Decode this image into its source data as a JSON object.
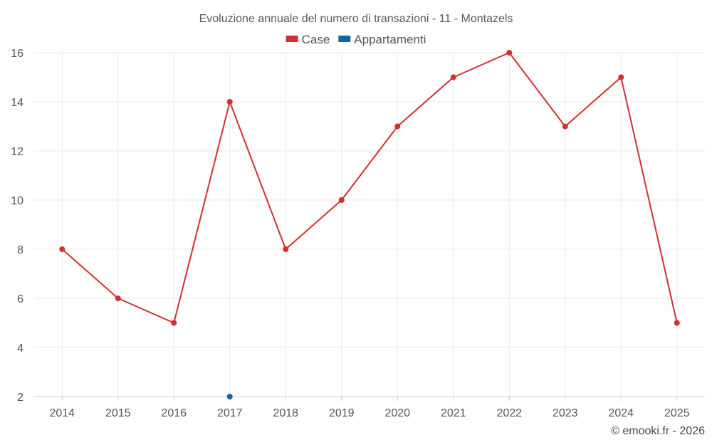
{
  "chart_data": {
    "type": "line",
    "title": "Evoluzione annuale del numero di transazioni - 11 - Montazels",
    "categories": [
      "2014",
      "2015",
      "2016",
      "2017",
      "2018",
      "2019",
      "2020",
      "2021",
      "2022",
      "2023",
      "2024",
      "2025"
    ],
    "series": [
      {
        "name": "Case",
        "color": "#d32f2f",
        "values": [
          8,
          6,
          5,
          14,
          8,
          10,
          13,
          15,
          16,
          13,
          15,
          5
        ]
      },
      {
        "name": "Appartamenti",
        "color": "#1565a0",
        "values": [
          null,
          null,
          null,
          2,
          null,
          null,
          null,
          null,
          null,
          null,
          null,
          null
        ]
      }
    ],
    "ylim": [
      2,
      16
    ],
    "yticks": [
      2,
      4,
      6,
      8,
      10,
      12,
      14,
      16
    ],
    "grid": true,
    "legend": "top-center"
  },
  "credit": "© emooki.fr - 2026"
}
